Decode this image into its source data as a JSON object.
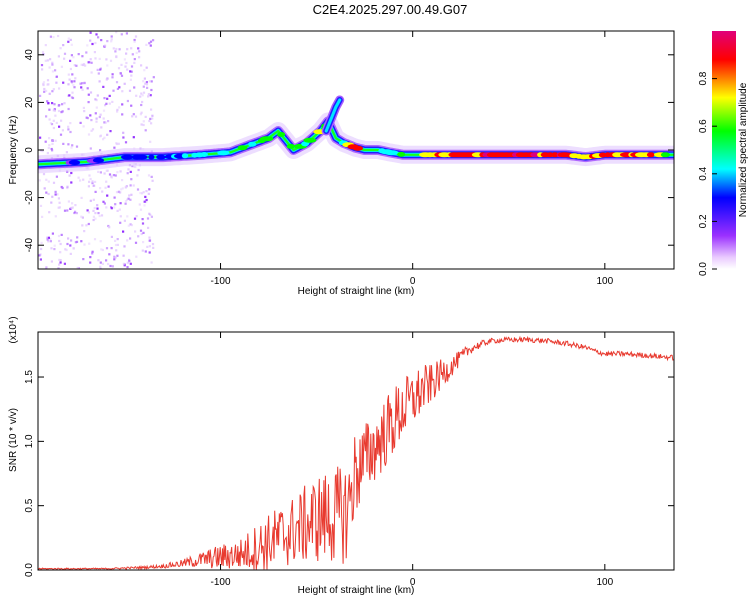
{
  "title": "C2E4.2025.297.00.49.G07",
  "chart_data": [
    {
      "type": "heatmap",
      "name": "spectrogram",
      "xlabel": "Height of straight line (km)",
      "ylabel": "Frequency (Hz)",
      "xlim": [
        -195,
        136
      ],
      "ylim": [
        -50,
        50
      ],
      "x_ticks": [
        -100,
        0,
        100
      ],
      "y_ticks": [
        -40,
        -20,
        0,
        20,
        40
      ],
      "colorbar": {
        "label": "Normalized spectral amplitude",
        "range": [
          0.0,
          1.0
        ],
        "ticks": [
          0.0,
          0.2,
          0.4,
          0.6,
          0.8
        ],
        "colormap": [
          "#ffffff",
          "#e9c9ff",
          "#9b30ff",
          "#0000ff",
          "#00ffff",
          "#00ff00",
          "#ffff00",
          "#ff0000",
          "#e0007a"
        ]
      },
      "ridge": {
        "description": "dominant frequency vs height",
        "x": [
          -195,
          -170,
          -150,
          -130,
          -110,
          -95,
          -85,
          -75,
          -70,
          -62,
          -55,
          -48,
          -44,
          -40,
          -36,
          -30,
          -25,
          -18,
          -12,
          -5,
          5,
          20,
          40,
          60,
          80,
          90,
          100,
          136
        ],
        "frequency_hz": [
          -6,
          -5,
          -3,
          -3,
          -2,
          -1,
          2,
          5,
          8,
          0,
          3,
          8,
          12,
          5,
          3,
          1,
          0,
          0,
          -1,
          -2,
          -2,
          -2,
          -2,
          -2,
          -2,
          -3,
          -2,
          -2
        ],
        "amplitude": [
          0.3,
          0.35,
          0.4,
          0.45,
          0.5,
          0.55,
          0.65,
          0.7,
          0.6,
          0.55,
          0.6,
          0.7,
          0.5,
          0.75,
          0.6,
          0.9,
          0.6,
          0.5,
          0.55,
          0.6,
          0.75,
          0.85,
          0.95,
          0.95,
          0.9,
          0.85,
          0.95,
          0.7
        ]
      },
      "branch": {
        "description": "upward spur near -40 km",
        "x": [
          -45,
          -42,
          -40,
          -38
        ],
        "frequency_hz": [
          8,
          14,
          18,
          21
        ]
      },
      "noise_region_x": [
        -195,
        -135
      ]
    },
    {
      "type": "line",
      "name": "snr",
      "xlabel": "Height of straight line (km)",
      "ylabel": "SNR (10 * v/v)",
      "yscale_label": "(x10⁴)",
      "xlim": [
        -195,
        136
      ],
      "ylim": [
        0,
        1.85
      ],
      "x_ticks": [
        -100,
        0,
        100
      ],
      "y_ticks": [
        0.0,
        0.5,
        1.0,
        1.5
      ],
      "series": [
        {
          "name": "SNR",
          "color": "#e83a2f",
          "x": [
            -195,
            -160,
            -140,
            -130,
            -120,
            -110,
            -100,
            -90,
            -80,
            -70,
            -60,
            -50,
            -40,
            -34,
            -30,
            -25,
            -20,
            -15,
            -10,
            -5,
            0,
            5,
            10,
            15,
            20,
            25,
            30,
            40,
            50,
            60,
            70,
            80,
            90,
            95,
            100,
            110,
            120,
            136
          ],
          "values": [
            0.01,
            0.01,
            0.02,
            0.03,
            0.05,
            0.08,
            0.1,
            0.12,
            0.18,
            0.25,
            0.32,
            0.4,
            0.42,
            0.45,
            0.75,
            0.85,
            0.95,
            1.05,
            1.15,
            1.25,
            1.32,
            1.4,
            1.45,
            1.52,
            1.58,
            1.65,
            1.72,
            1.78,
            1.79,
            1.79,
            1.78,
            1.76,
            1.73,
            1.7,
            1.68,
            1.68,
            1.67,
            1.65
          ],
          "noise_amplitude": [
            0.005,
            0.005,
            0.01,
            0.015,
            0.03,
            0.06,
            0.1,
            0.12,
            0.2,
            0.25,
            0.28,
            0.35,
            0.38,
            0.4,
            0.35,
            0.3,
            0.28,
            0.28,
            0.28,
            0.25,
            0.22,
            0.2,
            0.15,
            0.12,
            0.08,
            0.06,
            0.04,
            0.02,
            0.02,
            0.02,
            0.02,
            0.02,
            0.02,
            0.02,
            0.02,
            0.02,
            0.02,
            0.02
          ]
        }
      ]
    }
  ]
}
